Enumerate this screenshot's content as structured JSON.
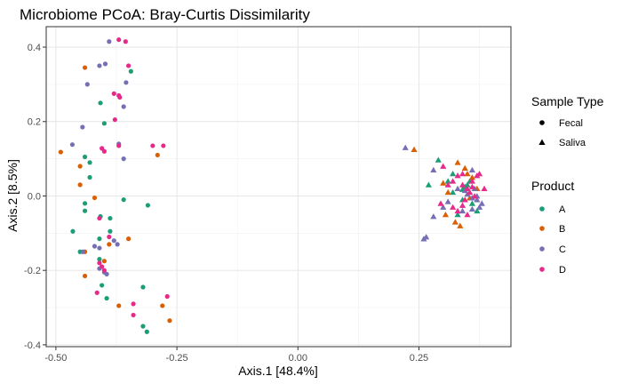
{
  "chart_data": {
    "type": "scatter",
    "title": "Microbiome PCoA: Bray-Curtis Dissimilarity",
    "xlabel": "Axis.1   [48.4%]",
    "ylabel": "Axis.2   [8.5%]",
    "xlim": [
      -0.52,
      0.44
    ],
    "ylim": [
      -0.405,
      0.455
    ],
    "xticks": [
      -0.5,
      -0.25,
      0.0,
      0.25
    ],
    "xtick_labels": [
      "-0.50",
      "-0.25",
      "0.00",
      "0.25"
    ],
    "yticks": [
      -0.4,
      -0.2,
      0.0,
      0.2,
      0.4
    ],
    "ytick_labels": [
      "-0.4",
      "-0.2",
      "0.0",
      "0.2",
      "0.4"
    ],
    "grid": true,
    "legend_position": "right",
    "legends": {
      "shape": {
        "title": "Sample Type",
        "items": [
          {
            "label": "Fecal",
            "shape": "circle"
          },
          {
            "label": "Saliva",
            "shape": "triangle"
          }
        ]
      },
      "color": {
        "title": "Product",
        "items": [
          {
            "label": "A",
            "color": "#1b9e77"
          },
          {
            "label": "B",
            "color": "#d95f02"
          },
          {
            "label": "C",
            "color": "#7570b3"
          },
          {
            "label": "D",
            "color": "#e7298a"
          }
        ]
      }
    },
    "series": [
      {
        "name": "A",
        "color": "#1b9e77",
        "shape": "circle",
        "points": [
          [
            -0.345,
            0.335
          ],
          [
            -0.408,
            0.25
          ],
          [
            -0.4,
            0.195
          ],
          [
            -0.44,
            0.105
          ],
          [
            -0.43,
            0.09
          ],
          [
            -0.43,
            0.05
          ],
          [
            -0.44,
            -0.02
          ],
          [
            -0.36,
            -0.01
          ],
          [
            -0.31,
            -0.025
          ],
          [
            -0.44,
            -0.04
          ],
          [
            -0.408,
            -0.055
          ],
          [
            -0.388,
            -0.06
          ],
          [
            -0.388,
            -0.095
          ],
          [
            -0.465,
            -0.095
          ],
          [
            -0.45,
            -0.15
          ],
          [
            -0.41,
            -0.17
          ],
          [
            -0.405,
            -0.24
          ],
          [
            -0.395,
            -0.275
          ],
          [
            -0.32,
            -0.245
          ],
          [
            -0.32,
            -0.35
          ],
          [
            -0.312,
            -0.365
          ],
          [
            -0.41,
            -0.115
          ]
        ]
      },
      {
        "name": "B",
        "color": "#d95f02",
        "shape": "circle",
        "points": [
          [
            -0.44,
            0.345
          ],
          [
            -0.49,
            0.118
          ],
          [
            -0.45,
            0.08
          ],
          [
            -0.45,
            0.03
          ],
          [
            -0.42,
            -0.005
          ],
          [
            -0.35,
            -0.115
          ],
          [
            -0.44,
            -0.15
          ],
          [
            -0.44,
            -0.215
          ],
          [
            -0.37,
            -0.295
          ],
          [
            -0.28,
            -0.295
          ],
          [
            -0.265,
            -0.335
          ],
          [
            -0.29,
            0.11
          ],
          [
            -0.4,
            -0.175
          ],
          [
            -0.39,
            -0.13
          ]
        ]
      },
      {
        "name": "C",
        "color": "#7570b3",
        "shape": "circle",
        "points": [
          [
            -0.39,
            0.415
          ],
          [
            -0.41,
            0.35
          ],
          [
            -0.398,
            0.355
          ],
          [
            -0.435,
            0.3
          ],
          [
            -0.355,
            0.305
          ],
          [
            -0.36,
            0.24
          ],
          [
            -0.445,
            0.185
          ],
          [
            -0.37,
            0.14
          ],
          [
            -0.466,
            0.138
          ],
          [
            -0.36,
            0.1
          ],
          [
            -0.38,
            -0.12
          ],
          [
            -0.373,
            -0.13
          ],
          [
            -0.41,
            -0.14
          ],
          [
            -0.444,
            -0.15
          ],
          [
            -0.41,
            -0.195
          ],
          [
            -0.4,
            -0.205
          ],
          [
            -0.395,
            -0.21
          ],
          [
            -0.42,
            -0.135
          ]
        ]
      },
      {
        "name": "D",
        "color": "#e7298a",
        "shape": "circle",
        "points": [
          [
            -0.37,
            0.42
          ],
          [
            -0.356,
            0.415
          ],
          [
            -0.35,
            0.35
          ],
          [
            -0.38,
            0.275
          ],
          [
            -0.37,
            0.27
          ],
          [
            -0.368,
            0.265
          ],
          [
            -0.378,
            0.205
          ],
          [
            -0.37,
            0.135
          ],
          [
            -0.3,
            0.135
          ],
          [
            -0.278,
            0.135
          ],
          [
            -0.4,
            0.12
          ],
          [
            -0.405,
            0.128
          ],
          [
            -0.41,
            -0.06
          ],
          [
            -0.39,
            -0.11
          ],
          [
            -0.405,
            -0.19
          ],
          [
            -0.4,
            -0.2
          ],
          [
            -0.415,
            -0.26
          ],
          [
            -0.34,
            -0.29
          ],
          [
            -0.27,
            -0.27
          ],
          [
            -0.34,
            -0.32
          ],
          [
            -0.41,
            -0.18
          ]
        ]
      },
      {
        "name": "A",
        "color": "#1b9e77",
        "shape": "triangle",
        "points": [
          [
            0.29,
            0.097
          ],
          [
            0.27,
            0.03
          ],
          [
            0.32,
            0.06
          ],
          [
            0.31,
            0.04
          ],
          [
            0.35,
            0.03
          ],
          [
            0.34,
            -0.01
          ],
          [
            0.36,
            -0.02
          ],
          [
            0.37,
            -0.04
          ],
          [
            0.33,
            -0.05
          ],
          [
            0.32,
            0.01
          ],
          [
            0.355,
            0.04
          ],
          [
            0.345,
            0.025
          ],
          [
            0.34,
            0.018
          ]
        ]
      },
      {
        "name": "B",
        "color": "#d95f02",
        "shape": "triangle",
        "points": [
          [
            0.24,
            0.125
          ],
          [
            0.33,
            0.09
          ],
          [
            0.345,
            0.075
          ],
          [
            0.305,
            -0.05
          ],
          [
            0.325,
            -0.07
          ],
          [
            0.335,
            -0.08
          ],
          [
            0.36,
            0.05
          ],
          [
            0.37,
            0.02
          ],
          [
            0.3,
            0.035
          ],
          [
            0.355,
            -0.005
          ],
          [
            0.35,
            0.06
          ],
          [
            0.31,
            0.01
          ]
        ]
      },
      {
        "name": "C",
        "color": "#7570b3",
        "shape": "triangle",
        "points": [
          [
            0.222,
            0.13
          ],
          [
            0.265,
            -0.11
          ],
          [
            0.26,
            -0.115
          ],
          [
            0.28,
            -0.055
          ],
          [
            0.3,
            -0.03
          ],
          [
            0.35,
            0.005
          ],
          [
            0.36,
            -0.005
          ],
          [
            0.37,
            0.0
          ],
          [
            0.38,
            -0.02
          ],
          [
            0.36,
            -0.035
          ],
          [
            0.34,
            -0.04
          ],
          [
            0.31,
            -0.015
          ],
          [
            0.33,
            0.02
          ],
          [
            0.36,
            0.07
          ],
          [
            0.28,
            0.07
          ],
          [
            0.37,
            -0.01
          ],
          [
            0.365,
            0.02
          ],
          [
            0.375,
            -0.03
          ],
          [
            0.345,
            0.015
          ]
        ]
      },
      {
        "name": "D",
        "color": "#e7298a",
        "shape": "triangle",
        "points": [
          [
            0.3,
            0.08
          ],
          [
            0.32,
            0.04
          ],
          [
            0.34,
            0.06
          ],
          [
            0.35,
            0.02
          ],
          [
            0.36,
            0.04
          ],
          [
            0.37,
            0.055
          ],
          [
            0.385,
            0.02
          ],
          [
            0.34,
            -0.025
          ],
          [
            0.33,
            -0.04
          ],
          [
            0.35,
            -0.05
          ],
          [
            0.32,
            -0.03
          ],
          [
            0.31,
            0.03
          ],
          [
            0.355,
            0.01
          ],
          [
            0.345,
            -0.01
          ],
          [
            0.36,
            0.025
          ],
          [
            0.33,
            0.055
          ],
          [
            0.375,
            0.06
          ],
          [
            0.34,
            0.03
          ],
          [
            0.295,
            -0.02
          ],
          [
            0.365,
            0.0
          ]
        ]
      }
    ]
  }
}
